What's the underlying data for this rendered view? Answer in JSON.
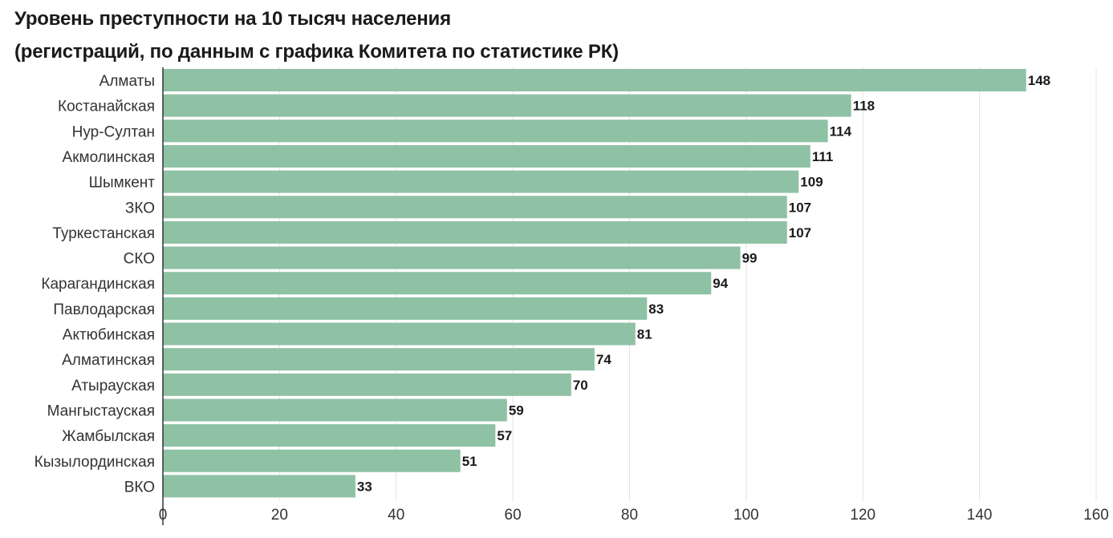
{
  "chart_data": {
    "type": "bar",
    "orientation": "horizontal",
    "title": "Уровень преступности на 10 тысяч населения",
    "subtitle": "(регистраций, по данным с графика Комитета по статистике РК)",
    "categories": [
      "Алматы",
      "Костанайская",
      "Нур-Султан",
      "Акмолинская",
      "Шымкент",
      "ЗКО",
      "Туркестанская",
      "СКО",
      "Карагандинская",
      "Павлодарская",
      "Актюбинская",
      "Алматинская",
      "Атырауская",
      "Мангыстауская",
      "Жамбылская",
      "Кызылординская",
      "ВКО"
    ],
    "values": [
      148,
      118,
      114,
      111,
      109,
      107,
      107,
      99,
      94,
      83,
      81,
      74,
      70,
      59,
      57,
      51,
      33
    ],
    "xlim": [
      0,
      160
    ],
    "x_ticks": [
      0,
      20,
      40,
      60,
      80,
      100,
      120,
      140,
      160
    ],
    "grid": true,
    "bar_color": "#8fc1a5",
    "data_labels": true
  }
}
